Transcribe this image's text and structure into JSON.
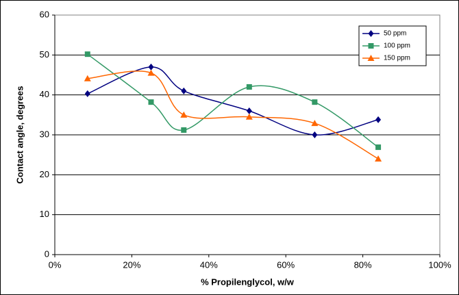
{
  "chart_data": {
    "type": "line",
    "x_label": "% Propilenglycol, w/w",
    "y_label": "Contact angle, degrees",
    "x": [
      8.5,
      25,
      33.5,
      50.5,
      67.5,
      84
    ],
    "series": [
      {
        "name": "50 ppm",
        "color": "#000080",
        "marker": "diamond",
        "values": [
          40.3,
          47.0,
          41.0,
          36.0,
          30.0,
          33.8
        ]
      },
      {
        "name": "100 ppm",
        "color": "#339966",
        "marker": "square",
        "values": [
          50.2,
          38.2,
          31.2,
          42.0,
          38.2,
          26.9
        ]
      },
      {
        "name": "150 ppm",
        "color": "#ff6600",
        "marker": "triangle",
        "values": [
          44.1,
          45.5,
          35.0,
          34.5,
          32.9,
          24.0
        ]
      }
    ],
    "xlim": [
      0,
      100
    ],
    "xticks": [
      {
        "value": 0,
        "label": "0%"
      },
      {
        "value": 20,
        "label": "20%"
      },
      {
        "value": 40,
        "label": "40%"
      },
      {
        "value": 60,
        "label": "60%"
      },
      {
        "value": 80,
        "label": "80%"
      },
      {
        "value": 100,
        "label": "100%"
      }
    ],
    "ylim": [
      0,
      60
    ],
    "yticks": [
      0,
      10,
      20,
      30,
      40,
      50,
      60
    ],
    "grid": true,
    "smooth": true,
    "legend": "top-right"
  }
}
